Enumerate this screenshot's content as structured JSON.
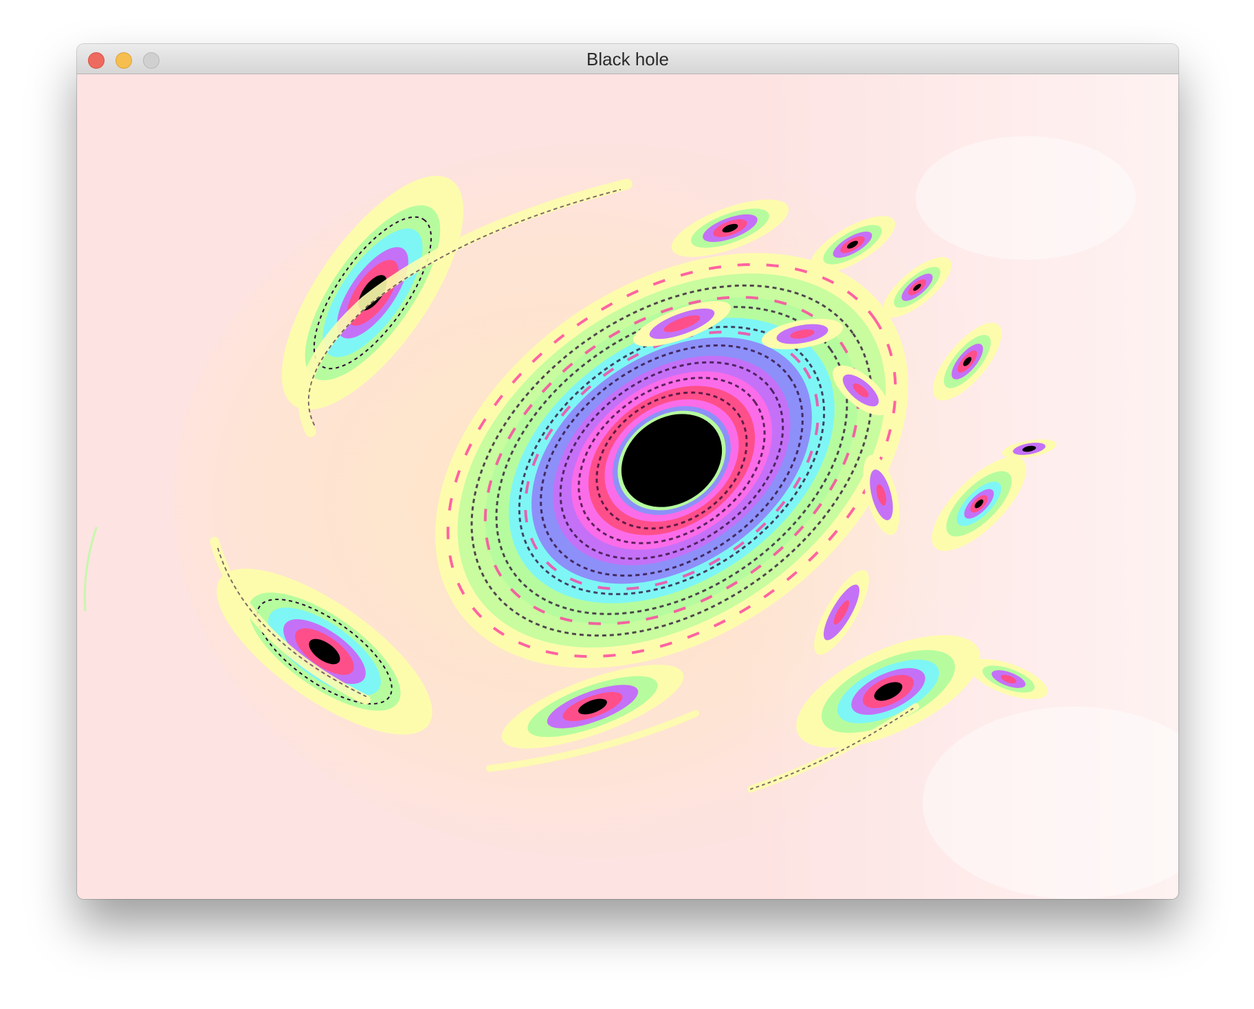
{
  "window": {
    "title": "Black hole",
    "controls": {
      "close_icon": "close-icon",
      "minimize_icon": "minimize-icon",
      "zoom_icon": "zoom-icon"
    }
  },
  "colors": {
    "background": "#fde3e2",
    "warm_glow": "#ffe8c8",
    "yellow": "#fdfcad",
    "green": "#b6fc9e",
    "cyan": "#7ef6f5",
    "blue": "#8d90f9",
    "violet": "#c471f8",
    "magenta": "#fb6ce9",
    "pink": "#ff4f8a",
    "black": "#000000"
  }
}
